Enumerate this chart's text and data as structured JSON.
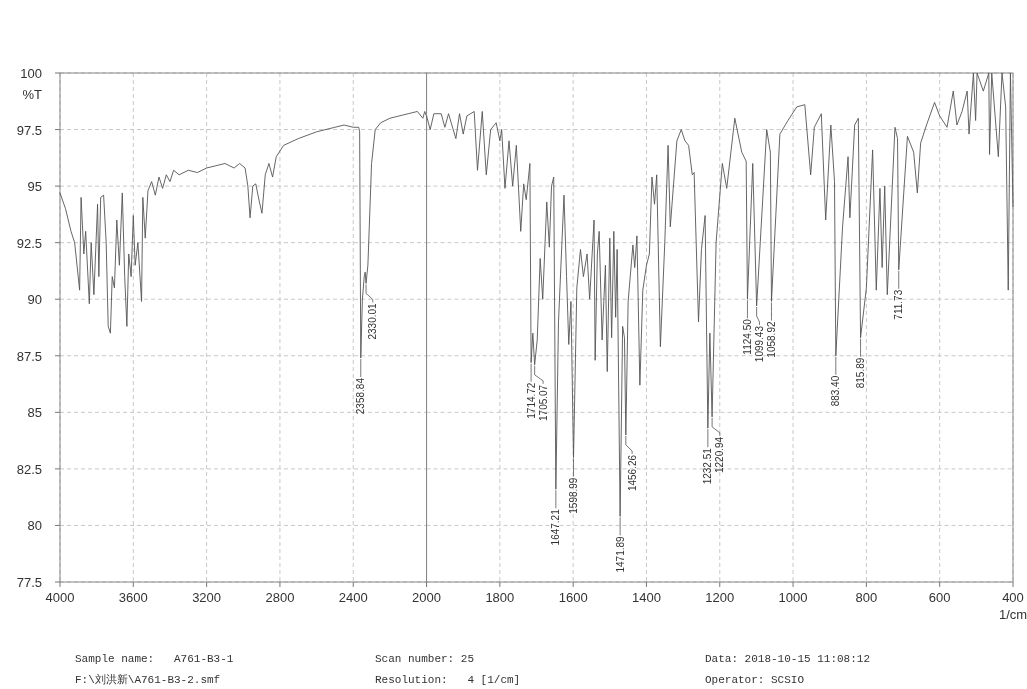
{
  "chart_data": [
    {
      "type": "line",
      "ylabel": "%T",
      "xlim": [
        4000,
        2000
      ],
      "xticks": [
        4000,
        3600,
        3200,
        2800,
        2400,
        {
          "value": 2000,
          "label": null
        }
      ],
      "ylim": [
        77.5,
        100
      ],
      "yticks": [
        77.5,
        80,
        82.5,
        85,
        87.5,
        90,
        92.5,
        95,
        97.5,
        100
      ],
      "grid": true,
      "series": [
        {
          "color": "#555555",
          "x": [
            4000,
            3970,
            3940,
            3920,
            3893,
            3885,
            3870,
            3860,
            3840,
            3830,
            3815,
            3795,
            3788,
            3778,
            3762,
            3748,
            3737,
            3725,
            3715,
            3703,
            3690,
            3676,
            3660,
            3647,
            3635,
            3625,
            3612,
            3600,
            3590,
            3575,
            3555,
            3548,
            3535,
            3520,
            3500,
            3480,
            3460,
            3440,
            3420,
            3400,
            3380,
            3350,
            3300,
            3250,
            3200,
            3150,
            3100,
            3050,
            3020,
            2990,
            2975,
            2963,
            2948,
            2932,
            2912,
            2898,
            2880,
            2860,
            2840,
            2820,
            2780,
            2700,
            2600,
            2500,
            2450,
            2400,
            2370,
            2365,
            2358.84,
            2350,
            2340,
            2335,
            2330.01,
            2320,
            2300,
            2280,
            2250,
            2200,
            2100,
            2050,
            2020,
            2010,
            2000
          ],
          "values": [
            94.7,
            94.0,
            93.0,
            92.5,
            90.4,
            94.5,
            92.0,
            93.0,
            89.8,
            92.5,
            90.2,
            94.2,
            91.0,
            94.5,
            94.6,
            92.5,
            88.8,
            88.5,
            91.0,
            90.5,
            93.5,
            91.5,
            94.7,
            91.0,
            88.8,
            92.0,
            91.0,
            93.7,
            91.5,
            92.5,
            89.9,
            94.5,
            92.7,
            94.8,
            95.2,
            94.6,
            95.4,
            94.9,
            95.5,
            95.2,
            95.7,
            95.5,
            95.7,
            95.6,
            95.8,
            95.9,
            96.0,
            95.8,
            96.0,
            95.8,
            95.0,
            93.6,
            95.0,
            95.1,
            94.3,
            93.8,
            95.5,
            96.0,
            95.4,
            96.3,
            96.8,
            97.1,
            97.4,
            97.6,
            97.7,
            97.6,
            97.6,
            97.4,
            87.4,
            90.0,
            91.0,
            91.2,
            90.7,
            91.5,
            96.0,
            97.5,
            97.8,
            98.0,
            98.2,
            98.3,
            98.0,
            98.3,
            98.1
          ]
        }
      ],
      "annotations": [
        {
          "text": "2358.84",
          "x": 2358.84,
          "y": 87.4
        },
        {
          "text": "2330.01",
          "x": 2330.01,
          "y": 90.7
        },
        "Sample name:   A761-B3-1",
        "F:\\刘洪新\\A761-B3-2.smf",
        "Scan number: 25",
        "Resolution:   4 [1/cm]",
        "Data: 2018-10-15 11:08:12",
        "Operator: SCSIO"
      ]
    },
    {
      "type": "line",
      "xlabel": "1/cm",
      "tick_labels": "x",
      "xlim": [
        2000,
        400
      ],
      "xticks": [
        2000,
        1800,
        1600,
        1400,
        1200,
        1000,
        800,
        600,
        400
      ],
      "ylim": [
        77.5,
        100
      ],
      "yticks": [
        77.5,
        80,
        82.5,
        85,
        87.5,
        90,
        92.5,
        95,
        97.5,
        100
      ],
      "grid": true,
      "series": [
        {
          "color": "#555555",
          "x": [
            2000,
            1990,
            1980,
            1960,
            1950,
            1940,
            1920,
            1910,
            1900,
            1890,
            1870,
            1861,
            1848,
            1837,
            1825,
            1810,
            1800,
            1795,
            1786,
            1775,
            1765,
            1755,
            1743,
            1735,
            1728,
            1718,
            1714.72,
            1710,
            1705.07,
            1698,
            1690,
            1683,
            1672,
            1665,
            1659,
            1653,
            1647.21,
            1640,
            1625,
            1618,
            1612,
            1606,
            1598.99,
            1590,
            1580,
            1572,
            1562,
            1555,
            1543,
            1540,
            1534,
            1529,
            1521,
            1512,
            1507,
            1500,
            1495,
            1489,
            1484,
            1480,
            1471.89,
            1465,
            1460,
            1456.26,
            1450,
            1437,
            1432,
            1426,
            1418,
            1410,
            1400,
            1392,
            1385,
            1378,
            1372,
            1362,
            1350,
            1341,
            1335,
            1317,
            1305,
            1295,
            1285,
            1275,
            1270,
            1258,
            1250,
            1240,
            1232.51,
            1227,
            1220.94,
            1210,
            1193,
            1181,
            1159,
            1140,
            1128,
            1124.5,
            1110,
            1099.43,
            1072,
            1062,
            1058.92,
            1036,
            1014,
            990,
            968,
            952,
            942,
            923,
            911,
            897,
            887,
            883.4,
            865,
            850,
            845,
            832,
            822,
            815.89,
            800,
            783,
            773,
            763,
            757,
            750,
            743,
            722,
            715,
            711.73,
            688,
            671,
            661,
            652,
            636,
            614,
            600,
            580,
            563,
            553,
            539,
            525,
            520,
            508,
            502,
            498,
            481,
            466,
            464,
            458,
            440,
            430,
            420,
            413,
            407,
            400
          ],
          "values": [
            98.1,
            97.5,
            98.2,
            98.2,
            97.6,
            98.2,
            97.1,
            98.2,
            97.3,
            98.1,
            98.3,
            95.7,
            98.3,
            95.5,
            97.5,
            97.8,
            97.0,
            97.5,
            94.9,
            97.0,
            95.0,
            96.8,
            93.0,
            95.1,
            94.4,
            96.0,
            87.2,
            88.5,
            87.1,
            88.2,
            91.8,
            90.0,
            94.3,
            92.3,
            95.0,
            95.4,
            81.6,
            89.0,
            94.6,
            91.0,
            88.0,
            89.9,
            83.0,
            90.5,
            92.2,
            91.0,
            92.0,
            90.0,
            93.5,
            87.3,
            92.0,
            93.0,
            88.2,
            91.5,
            86.8,
            92.7,
            88.3,
            93.0,
            89.2,
            92.2,
            80.4,
            88.8,
            88.3,
            84.0,
            89.9,
            92.4,
            91.4,
            92.8,
            86.2,
            90.4,
            91.5,
            92.0,
            95.4,
            94.2,
            95.5,
            87.9,
            92.5,
            96.8,
            93.2,
            97.0,
            97.5,
            97.0,
            96.8,
            95.5,
            95.6,
            89.0,
            92.2,
            93.7,
            84.3,
            88.5,
            84.8,
            92.5,
            96.0,
            94.9,
            98.0,
            96.5,
            96.1,
            90.0,
            96.0,
            89.7,
            97.5,
            96.5,
            89.9,
            97.3,
            97.9,
            98.5,
            98.6,
            95.5,
            97.6,
            98.2,
            93.5,
            97.7,
            95.2,
            87.5,
            93.2,
            96.3,
            93.6,
            97.7,
            98.0,
            88.3,
            90.5,
            96.6,
            90.4,
            94.9,
            91.4,
            95.0,
            90.2,
            97.6,
            97.1,
            91.3,
            97.2,
            96.5,
            94.7,
            96.9,
            97.7,
            98.7,
            98.1,
            97.6,
            99.2,
            97.7,
            98.3,
            99.2,
            97.3,
            100,
            97.9,
            100,
            99.2,
            100,
            96.4,
            100,
            96.3,
            100,
            98.5,
            90.4,
            100,
            94.1
          ]
        }
      ],
      "annotations": [
        {
          "text": "1714.72",
          "x": 1714.72,
          "y": 87.2
        },
        {
          "text": "1705.07",
          "x": 1705.07,
          "y": 87.1
        },
        {
          "text": "1647.21",
          "x": 1647.21,
          "y": 81.6
        },
        {
          "text": "1598.99",
          "x": 1598.99,
          "y": 83.0
        },
        {
          "text": "1471.89",
          "x": 1471.89,
          "y": 80.4
        },
        {
          "text": "1456.26",
          "x": 1456.26,
          "y": 84.0
        },
        {
          "text": "1232.51",
          "x": 1232.51,
          "y": 84.3
        },
        {
          "text": "1220.94",
          "x": 1220.94,
          "y": 84.8
        },
        {
          "text": "1124.50",
          "x": 1124.5,
          "y": 90.0
        },
        {
          "text": "1099.43",
          "x": 1099.43,
          "y": 89.7
        },
        {
          "text": "1058.92",
          "x": 1058.92,
          "y": 89.9
        },
        {
          "text": "883.40",
          "x": 883.4,
          "y": 87.5
        },
        {
          "text": "815.89",
          "x": 815.89,
          "y": 88.3
        },
        {
          "text": "711.73",
          "x": 711.73,
          "y": 91.3
        }
      ]
    }
  ]
}
